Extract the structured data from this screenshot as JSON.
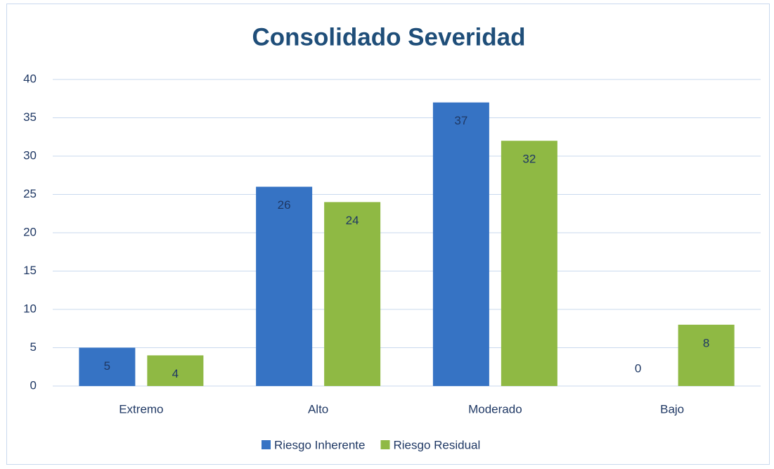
{
  "chart_data": {
    "type": "bar",
    "title": "Consolidado Severidad",
    "categories": [
      "Extremo",
      "Alto",
      "Moderado",
      "Bajo"
    ],
    "series": [
      {
        "name": "Riesgo Inherente",
        "color": "#3673c4",
        "values": [
          5,
          26,
          37,
          0
        ]
      },
      {
        "name": "Riesgo Residual",
        "color": "#8fb944",
        "values": [
          4,
          24,
          32,
          8
        ]
      }
    ],
    "ylim": [
      0,
      40
    ],
    "yticks": [
      0,
      5,
      10,
      15,
      20,
      25,
      30,
      35,
      40
    ],
    "grid": true,
    "legend": "bottom"
  }
}
